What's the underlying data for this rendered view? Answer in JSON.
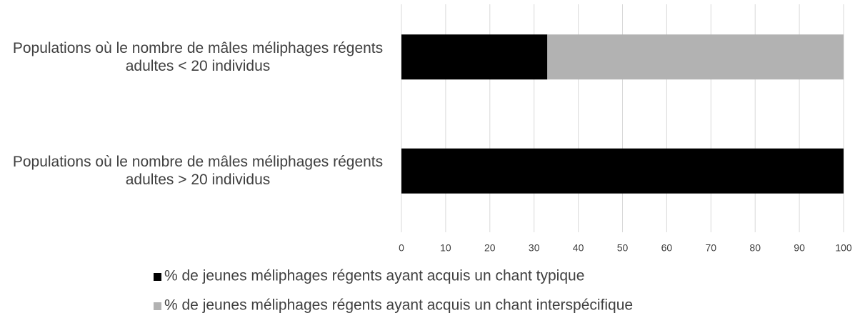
{
  "chart_data": {
    "type": "stacked_barh",
    "categories": [
      "Populations où le nombre de mâles méliphages régents adultes < 20 individus",
      "Populations où le nombre de mâles méliphages régents adultes > 20 individus"
    ],
    "series": [
      {
        "name": "% de jeunes méliphages régents ayant acquis un chant typique",
        "color": "#000000",
        "values": [
          33,
          100
        ]
      },
      {
        "name": "% de jeunes méliphages régents ayant acquis un chant interspécifique",
        "color": "#b2b2b2",
        "values": [
          67,
          0
        ]
      }
    ],
    "xlim": [
      0,
      100
    ],
    "xticks": [
      0,
      10,
      20,
      30,
      40,
      50,
      60,
      70,
      80,
      90,
      100
    ],
    "grid": true,
    "legend": "bottom"
  }
}
